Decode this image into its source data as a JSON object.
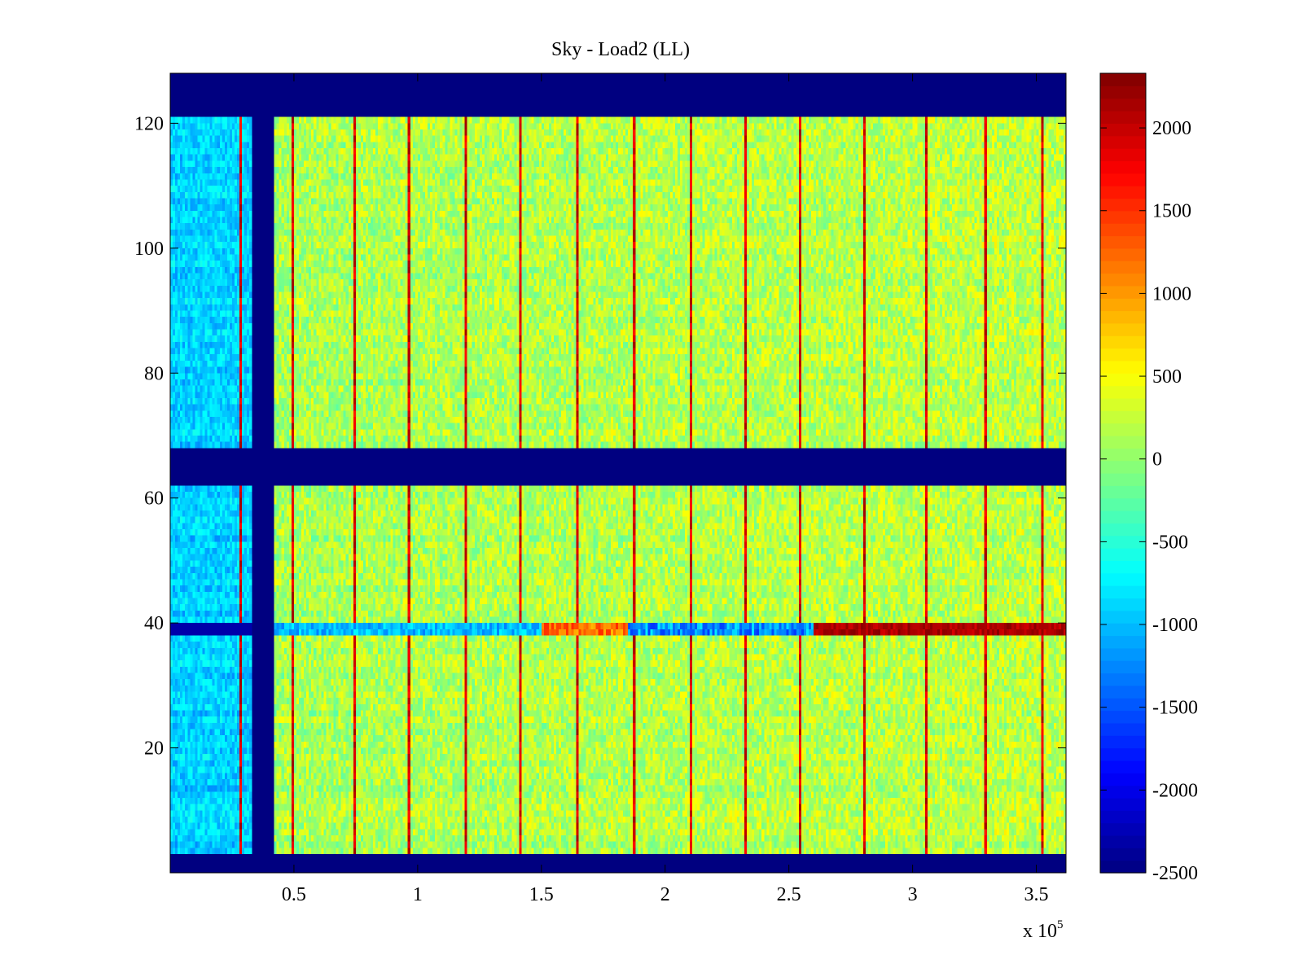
{
  "chart_data": {
    "type": "heatmap",
    "title": "Sky - Load2 (LL)",
    "xlabel": "",
    "ylabel": "",
    "x_exponent_label": "x 10",
    "x_exponent_power": "5",
    "xlim": [
      0,
      3.62
    ],
    "ylim": [
      0,
      128
    ],
    "x_ticks": [
      0.5,
      1,
      1.5,
      2,
      2.5,
      3,
      3.5
    ],
    "x_tick_labels": [
      "0.5",
      "1",
      "1.5",
      "2",
      "2.5",
      "3",
      "3.5"
    ],
    "y_ticks": [
      20,
      40,
      60,
      80,
      100,
      120
    ],
    "y_tick_labels": [
      "20",
      "40",
      "60",
      "80",
      "100",
      "120"
    ],
    "colormap": "jet",
    "clim": [
      -2500,
      2330
    ],
    "colorbar_ticks": [
      -2500,
      -2000,
      -1500,
      -1000,
      -500,
      0,
      500,
      1000,
      1500,
      2000
    ],
    "colorbar_tick_labels": [
      "-2500",
      "-2000",
      "-1500",
      "-1000",
      "-500",
      "0",
      "500",
      "1000",
      "1500",
      "2000"
    ],
    "masked_row_bands": [
      [
        0,
        3
      ],
      [
        62,
        68
      ],
      [
        121,
        128
      ]
    ],
    "masked_column_band": [
      0.33,
      0.42
    ],
    "hot_columns_x": [
      0.285,
      0.49,
      0.74,
      0.96,
      1.19,
      1.41,
      1.64,
      1.87,
      2.1,
      2.32,
      2.54,
      2.8,
      3.05,
      3.29,
      3.52
    ],
    "cold_row_y": 39,
    "typical_value": 100,
    "left_region_value": -900
  }
}
